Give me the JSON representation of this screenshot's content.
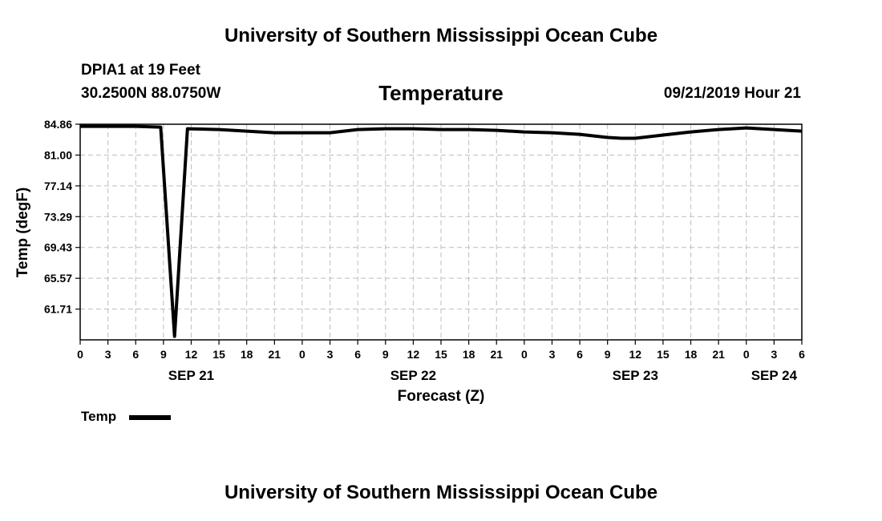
{
  "header": {
    "title_top": "University of Southern Mississippi Ocean Cube",
    "title_bottom": "University of Southern Mississippi Ocean Cube",
    "station": "DPIA1 at 19 Feet",
    "coords": "30.2500N 88.0750W",
    "chart_title": "Temperature",
    "datetime": "09/21/2019 Hour 21"
  },
  "legend": {
    "label": "Temp"
  },
  "colors": {
    "line": "#000000",
    "grid": "#bdbdbd",
    "background": "#ffffff"
  },
  "chart_data": {
    "type": "line",
    "title": "Temperature",
    "xlabel": "Forecast (Z)",
    "ylabel": "Temp (degF)",
    "xlim": [
      0,
      78
    ],
    "ylim": [
      57.86,
      84.86
    ],
    "grid": true,
    "legend_position": "below-left",
    "x_ticks": [
      0,
      3,
      6,
      9,
      12,
      15,
      18,
      21,
      24,
      27,
      30,
      33,
      36,
      39,
      42,
      45,
      48,
      51,
      54,
      57,
      60,
      63,
      66,
      69,
      72,
      75,
      78
    ],
    "x_tick_labels": [
      "0",
      "3",
      "6",
      "9",
      "12",
      "15",
      "18",
      "21",
      "0",
      "3",
      "6",
      "9",
      "12",
      "15",
      "18",
      "21",
      "0",
      "3",
      "6",
      "9",
      "12",
      "15",
      "18",
      "21",
      "0",
      "3",
      "6"
    ],
    "date_labels": [
      {
        "x": 12,
        "label": "SEP 21"
      },
      {
        "x": 36,
        "label": "SEP 22"
      },
      {
        "x": 60,
        "label": "SEP 23"
      },
      {
        "x": 75,
        "label": "SEP 24"
      }
    ],
    "y_ticks": [
      84.86,
      81.0,
      77.14,
      73.29,
      69.43,
      65.57,
      61.71
    ],
    "y_tick_labels": [
      "84.86",
      "81.00",
      "77.14",
      "73.29",
      "69.43",
      "65.57",
      "61.71"
    ],
    "series": [
      {
        "name": "Temp",
        "x": [
          0,
          3,
          6,
          8.7,
          10.2,
          11.6,
          15,
          18,
          21,
          24,
          27,
          30,
          33,
          36,
          39,
          42,
          45,
          48,
          51,
          54,
          57,
          58.5,
          60,
          63,
          66,
          69,
          72,
          75,
          78
        ],
        "y": [
          84.6,
          84.6,
          84.6,
          84.5,
          58.3,
          84.3,
          84.2,
          84.0,
          83.8,
          83.8,
          83.8,
          84.2,
          84.3,
          84.3,
          84.2,
          84.2,
          84.1,
          83.9,
          83.8,
          83.6,
          83.2,
          83.1,
          83.1,
          83.5,
          83.9,
          84.2,
          84.4,
          84.2,
          84.0
        ]
      }
    ]
  }
}
